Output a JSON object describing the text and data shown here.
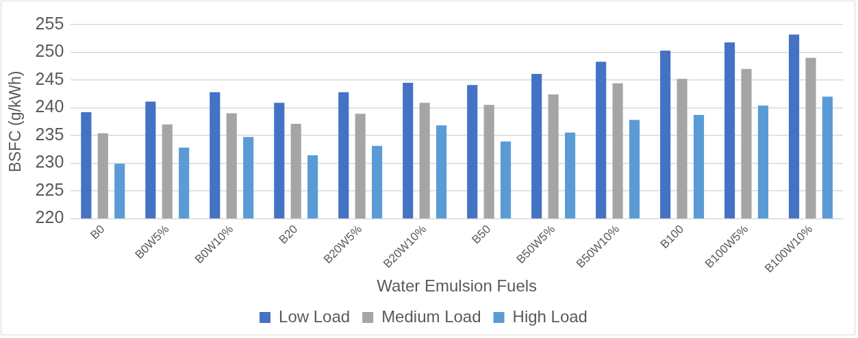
{
  "chart_data": {
    "type": "bar",
    "xlabel": "Water Emulsion Fuels",
    "ylabel": "BSFC (g/kWh)",
    "categories": [
      "B0",
      "B0W5%",
      "B0W10%",
      "B20",
      "B20W5%",
      "B20W10%",
      "B50",
      "B50W5%",
      "B50W10%",
      "B100",
      "B100W5%",
      "B100W10%"
    ],
    "series": [
      {
        "name": "Low Load",
        "color": "#4472c4",
        "values": [
          239.2,
          241.1,
          242.8,
          240.9,
          242.8,
          244.5,
          244.1,
          246.1,
          248.3,
          250.3,
          251.8,
          253.2
        ]
      },
      {
        "name": "Medium Load",
        "color": "#a5a5a5",
        "values": [
          235.4,
          237.0,
          239.0,
          237.1,
          238.9,
          240.9,
          240.5,
          242.4,
          244.4,
          245.2,
          247.0,
          249.0
        ]
      },
      {
        "name": "High Load",
        "color": "#5b9bd5",
        "values": [
          229.9,
          232.8,
          234.7,
          231.4,
          233.1,
          236.8,
          233.9,
          235.5,
          237.8,
          238.7,
          240.4,
          242.0
        ]
      }
    ],
    "ylim": [
      220,
      255
    ],
    "yticks": [
      220,
      225,
      230,
      235,
      240,
      245,
      250,
      255
    ],
    "grid": "y",
    "legend": "bottom"
  }
}
